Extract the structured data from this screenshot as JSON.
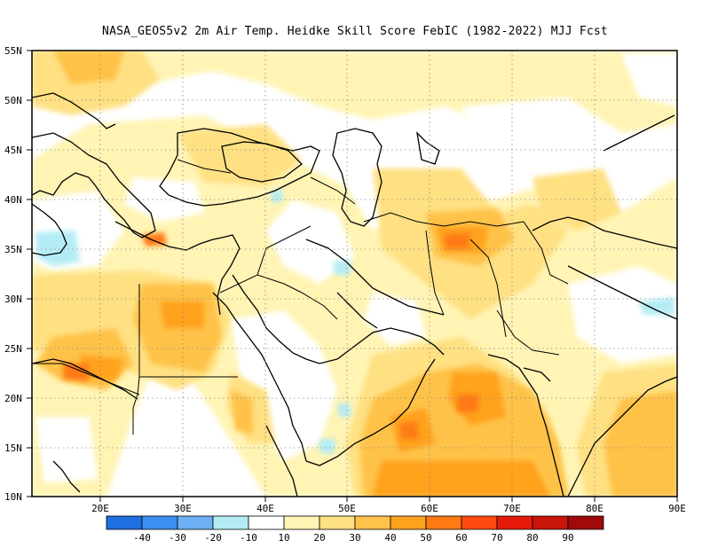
{
  "title": "NASA_GEOS5v2  2m Air Temp. Heidke Skill Score FebIC (1982-2022) MJJ Fcst",
  "map": {
    "lon_range": [
      12,
      90
    ],
    "lat_range": [
      10,
      55
    ],
    "lat_ticks": [
      "55N",
      "50N",
      "45N",
      "40N",
      "35N",
      "30N",
      "25N",
      "20N",
      "15N",
      "10N"
    ],
    "lon_ticks": [
      "20E",
      "30E",
      "40E",
      "50E",
      "60E",
      "70E",
      "80E",
      "90E"
    ]
  },
  "colorbar": {
    "labels": [
      "-40",
      "-30",
      "-20",
      "-10",
      "10",
      "20",
      "30",
      "40",
      "50",
      "60",
      "70",
      "80",
      "90"
    ],
    "colors": [
      "#1e6fe0",
      "#3c8ff0",
      "#6eb0f5",
      "#b4ecf5",
      "#ffffff",
      "#fff4b4",
      "#ffe082",
      "#ffc24a",
      "#ffa21e",
      "#ff7a14",
      "#ff4a10",
      "#e61a0a",
      "#c8140a",
      "#a00a0a"
    ]
  }
}
